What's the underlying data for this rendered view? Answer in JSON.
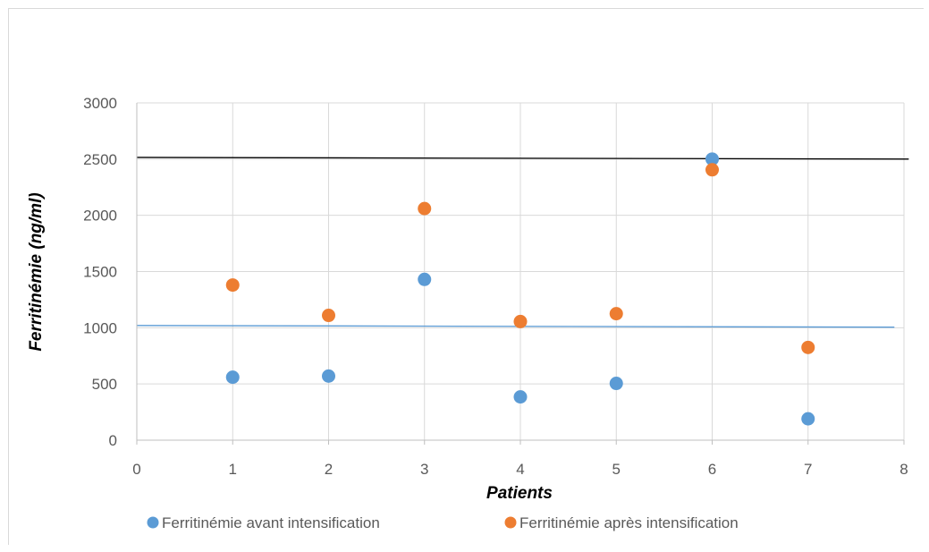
{
  "chart_data": {
    "type": "scatter",
    "title": "",
    "xlabel": "Patients",
    "ylabel": "Ferritinémie (ng/ml)",
    "xlim": [
      0,
      8
    ],
    "ylim": [
      0,
      3000
    ],
    "x_ticks": [
      0,
      1,
      2,
      3,
      4,
      5,
      6,
      7,
      8
    ],
    "y_ticks": [
      0,
      500,
      1000,
      1500,
      2000,
      2500,
      3000
    ],
    "grid": true,
    "legend_position": "bottom",
    "series": [
      {
        "name": "Ferritinémie avant intensification",
        "color": "#5b9bd5",
        "x": [
          1,
          2,
          3,
          4,
          5,
          6,
          7
        ],
        "y": [
          560,
          570,
          1430,
          385,
          505,
          2500,
          190
        ]
      },
      {
        "name": "Ferritinémie après intensification",
        "color": "#ed7d31",
        "x": [
          1,
          2,
          3,
          4,
          5,
          6,
          7
        ],
        "y": [
          1380,
          1110,
          2060,
          1055,
          1125,
          2405,
          825
        ]
      }
    ],
    "reference_lines": [
      {
        "color": "#000000",
        "y_start": 2515,
        "y_end": 2500,
        "x_start": 0,
        "x_end": 8.05
      },
      {
        "color": "#5b9bd5",
        "y_start": 1020,
        "y_end": 1005,
        "x_start": 0,
        "x_end": 7.9
      }
    ]
  }
}
